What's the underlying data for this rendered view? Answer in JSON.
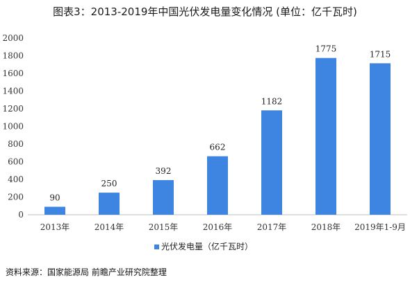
{
  "title": "图表3：2013-2019年中国光伏发电量变化情况 (单位：亿千瓦时)",
  "source": "资料来源：国家能源局 前瞻产业研究院整理",
  "chart_data": {
    "type": "bar",
    "categories": [
      "2013年",
      "2014年",
      "2015年",
      "2016年",
      "2017年",
      "2018年",
      "2019年1-9月"
    ],
    "series": [
      {
        "name": "光伏发电量（亿千瓦时）",
        "values": [
          90,
          250,
          392,
          662,
          1182,
          1775,
          1715
        ],
        "color": "#3d85e0"
      }
    ],
    "data_labels": [
      "90",
      "250",
      "392",
      "662",
      "1182",
      "1775",
      "1715"
    ],
    "ylim": [
      0,
      2000
    ],
    "yticks": [
      0,
      200,
      400,
      600,
      800,
      1000,
      1200,
      1400,
      1600,
      1800,
      2000
    ],
    "grid": false,
    "legend_position": "bottom"
  }
}
